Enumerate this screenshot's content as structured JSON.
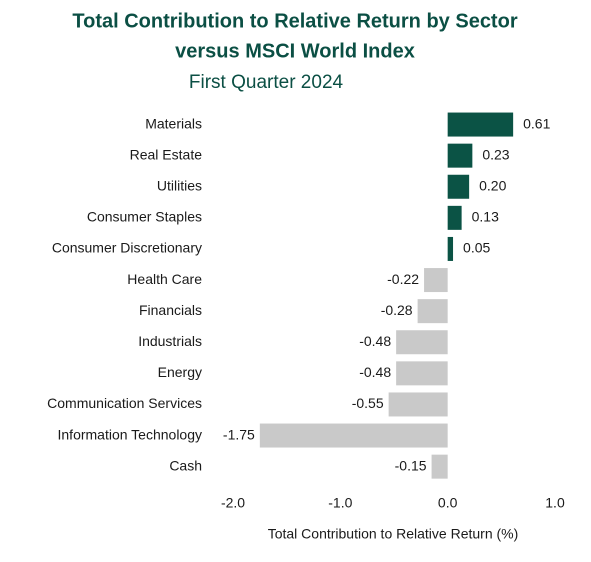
{
  "chart_data": {
    "type": "hbar",
    "title": [
      "Total Contribution to Relative Return by  Sector",
      "versus MSCI World Index"
    ],
    "subtitle": "First Quarter 2024",
    "x_label": "Total Contribution to Relative Return (%)",
    "categories": [
      "Materials",
      "Real Estate",
      "Utilities",
      "Consumer Staples",
      "Consumer Discretionary",
      "Health Care",
      "Financials",
      "Industrials",
      "Energy",
      "Communication Services",
      "Information Technology",
      "Cash"
    ],
    "values": [
      0.61,
      0.23,
      0.2,
      0.13,
      0.05,
      -0.22,
      -0.28,
      -0.48,
      -0.48,
      -0.55,
      -1.75,
      -0.15
    ],
    "value_labels": [
      "0.61",
      "0.23",
      "0.20",
      "0.13",
      "0.05",
      "-0.22",
      "-0.28",
      "-0.48",
      "-0.48",
      "-0.55",
      "-1.75",
      "-0.15"
    ],
    "positive_color": "#0b5345",
    "negative_color": "#c9c9c9",
    "xlim": [
      -2,
      1
    ],
    "xticks": [
      {
        "value": -2,
        "label": "-2.0"
      },
      {
        "value": -1,
        "label": "-1.0"
      },
      {
        "value": 0,
        "label": "0.0"
      },
      {
        "value": 1,
        "label": "1.0"
      }
    ]
  }
}
